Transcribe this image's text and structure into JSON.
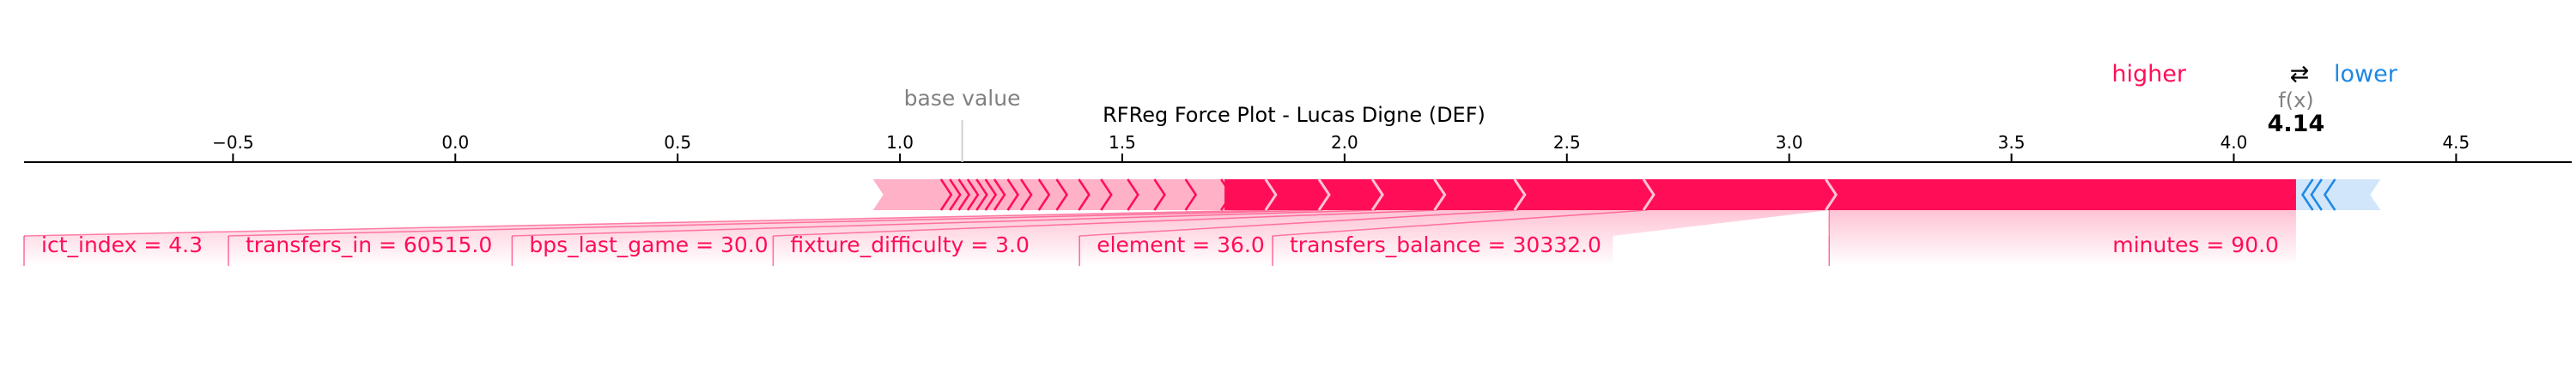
{
  "chart_data": {
    "type": "force",
    "title": "RFReg Force Plot - Lucas Digne (DEF)",
    "legend": {
      "higher": "higher",
      "lower": "lower",
      "arrow": "⇄"
    },
    "base_value_label": "base value",
    "fx_label": "f(x)",
    "fx_value_text": "4.14",
    "base_value": 1.14,
    "fx_value": 4.14,
    "xlim": [
      -0.97,
      4.76
    ],
    "ticks": [
      {
        "value": -0.5,
        "label": "−0.5"
      },
      {
        "value": 0.0,
        "label": "0.0"
      },
      {
        "value": 0.5,
        "label": "0.5"
      },
      {
        "value": 1.0,
        "label": "1.0"
      },
      {
        "value": 1.5,
        "label": "1.5"
      },
      {
        "value": 2.0,
        "label": "2.0"
      },
      {
        "value": 2.5,
        "label": "2.5"
      },
      {
        "value": 3.0,
        "label": "3.0"
      },
      {
        "value": 3.5,
        "label": "3.5"
      },
      {
        "value": 4.0,
        "label": "4.0"
      },
      {
        "value": 4.5,
        "label": "4.5"
      }
    ],
    "positive_bar": {
      "start": 0.94,
      "end": 4.14
    },
    "negative_bar": {
      "start": 4.14,
      "end": 4.33
    },
    "positive_features": [
      {
        "label": "minutes = 90.0",
        "from": 3.09,
        "to": 4.14
      },
      {
        "label": "transfers_balance = 30332.0",
        "from": 2.68,
        "to": 3.09
      },
      {
        "label": "element = 36.0",
        "from": 2.39,
        "to": 2.68
      },
      {
        "label": "fixture_difficulty = 3.0",
        "from": 2.21,
        "to": 2.39
      },
      {
        "label": "bps_last_game = 30.0",
        "from": 2.07,
        "to": 2.21
      },
      {
        "label": "transfers_in = 60515.0",
        "from": 1.95,
        "to": 2.07
      },
      {
        "label": "ict_index = 4.3",
        "from": 1.83,
        "to": 1.95
      }
    ],
    "positive_small_boundaries": [
      1.1,
      1.12,
      1.14,
      1.16,
      1.18,
      1.2,
      1.22,
      1.25,
      1.28,
      1.32,
      1.36,
      1.41,
      1.46,
      1.52,
      1.58,
      1.65,
      1.73
    ],
    "negative_small_boundaries": [
      4.17,
      4.19,
      4.22
    ]
  },
  "colors": {
    "positive": "#ff0d57",
    "positive_light": "#ffc3d5",
    "negative": "#1e88e5",
    "negative_light": "#d1e6fa",
    "axis": "#000000",
    "muted": "#808080",
    "chevron": "#ffc3d5"
  }
}
